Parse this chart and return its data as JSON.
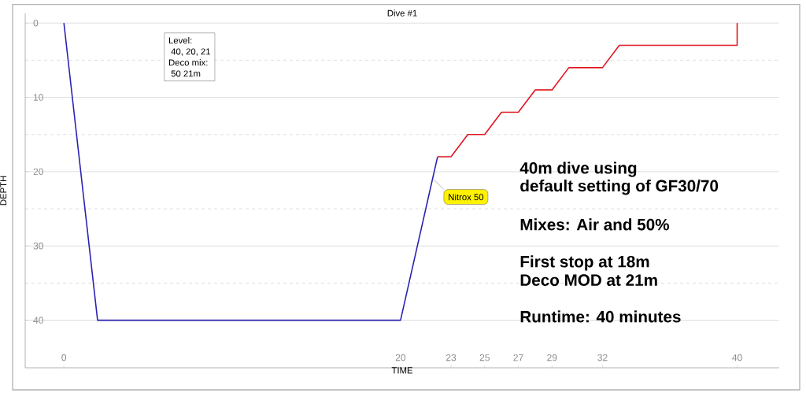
{
  "chart_data": {
    "type": "line",
    "title": "Dive #1",
    "xlabel": "TIME",
    "ylabel": "DEPTH",
    "xlim": [
      -2.3,
      42.5
    ],
    "ylim": [
      46.4,
      -1.3
    ],
    "xticks": [
      0,
      20,
      23,
      25,
      27,
      29,
      32,
      40
    ],
    "yticks": [
      0,
      {
        "value": 5,
        "label": null
      },
      10,
      {
        "value": 15,
        "label": null
      },
      20,
      {
        "value": 25,
        "label": null
      },
      30,
      {
        "value": 35,
        "label": null
      },
      40
    ],
    "grid": "y",
    "series": [
      {
        "color": "#2b22b0",
        "x": [
          0,
          2,
          20,
          22.2
        ],
        "values": [
          0,
          40,
          40,
          18
        ]
      },
      {
        "color": "#e0141e",
        "x": [
          22.2,
          23,
          24,
          25,
          26,
          27,
          28,
          29,
          30,
          32,
          33,
          40,
          40
        ],
        "values": [
          18,
          18,
          15,
          15,
          12,
          12,
          9,
          9,
          6,
          6,
          3,
          3,
          0
        ]
      }
    ],
    "annotations": [
      "Level:",
      " 40, 20, 21",
      "Deco mix:",
      " 50 21m",
      {
        "text": "Nitrox 50",
        "x": 22.0,
        "y": 21.1
      },
      "40m dive using",
      "default setting of GF30/70",
      "Mixes: Air and 50%",
      "First stop at 18m",
      "Deco MOD at 21m",
      "Runtime: 40 minutes"
    ]
  }
}
